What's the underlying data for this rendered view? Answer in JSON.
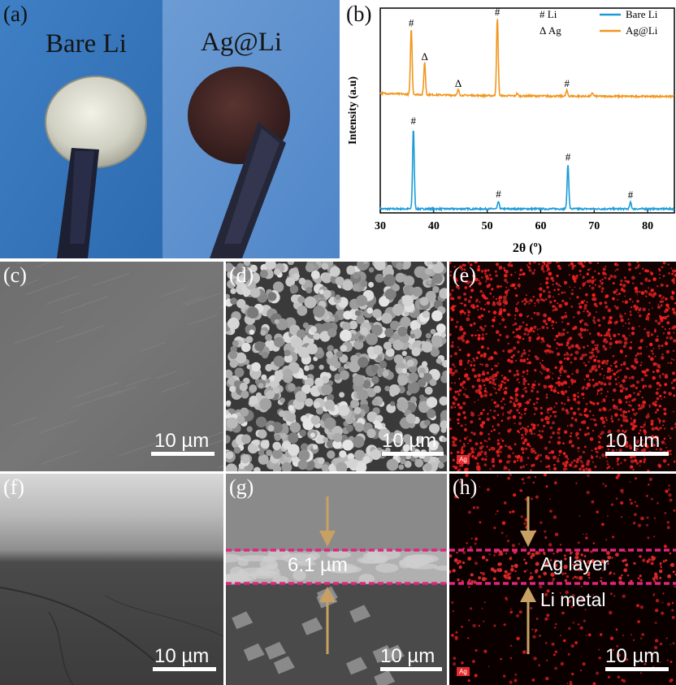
{
  "panel_a": {
    "label": "(a)",
    "left_caption": "Bare Li",
    "right_caption": "Ag@Li"
  },
  "panel_b": {
    "label": "(b)"
  },
  "chart_data": {
    "type": "line",
    "xlabel": "2θ (º)",
    "ylabel": "Intensity (a.u)",
    "xlim": [
      30,
      85
    ],
    "x_ticks": [
      30,
      40,
      50,
      60,
      70,
      80
    ],
    "y_ticks_shown": false,
    "legend_position": "top-right",
    "legend_markers": [
      "# Li",
      "Δ Ag"
    ],
    "series": [
      {
        "name": "Bare Li",
        "color": "#1a9bd7",
        "baseline": 0.05,
        "peaks": [
          {
            "x": 36.2,
            "height": 1.0,
            "marker": "#"
          },
          {
            "x": 52.1,
            "height": 0.09,
            "marker": "#"
          },
          {
            "x": 65.1,
            "height": 0.55,
            "marker": "#"
          },
          {
            "x": 76.8,
            "height": 0.08,
            "marker": "#"
          }
        ]
      },
      {
        "name": "Ag@Li",
        "color": "#f2961e",
        "baseline": 1.45,
        "peaks": [
          {
            "x": 35.8,
            "height": 0.82,
            "marker": "#"
          },
          {
            "x": 38.3,
            "height": 0.4,
            "marker": "Δ"
          },
          {
            "x": 44.6,
            "height": 0.07,
            "marker": "Δ"
          },
          {
            "x": 51.9,
            "height": 0.96,
            "marker": "#"
          },
          {
            "x": 55.6,
            "height": 0.03,
            "marker": ""
          },
          {
            "x": 64.9,
            "height": 0.07,
            "marker": "#"
          },
          {
            "x": 69.7,
            "height": 0.04,
            "marker": ""
          }
        ]
      }
    ]
  },
  "panel_c": {
    "label": "(c)",
    "scale": "10 µm"
  },
  "panel_d": {
    "label": "(d)",
    "scale": "10 µm"
  },
  "panel_e": {
    "label": "(e)",
    "scale": "10 µm",
    "element_tag": "Ag"
  },
  "panel_f": {
    "label": "(f)",
    "scale": "10 µm"
  },
  "panel_g": {
    "label": "(g)",
    "scale": "10 µm",
    "thickness": "6.1 µm"
  },
  "panel_h": {
    "label": "(h)",
    "scale": "10 µm",
    "element_tag": "Ag",
    "upper_layer": "Ag layer",
    "lower_layer": "Li metal"
  },
  "colors": {
    "marker_line": "#e0267f",
    "arrow": "#c8a064",
    "eds_red": "#e02828"
  }
}
